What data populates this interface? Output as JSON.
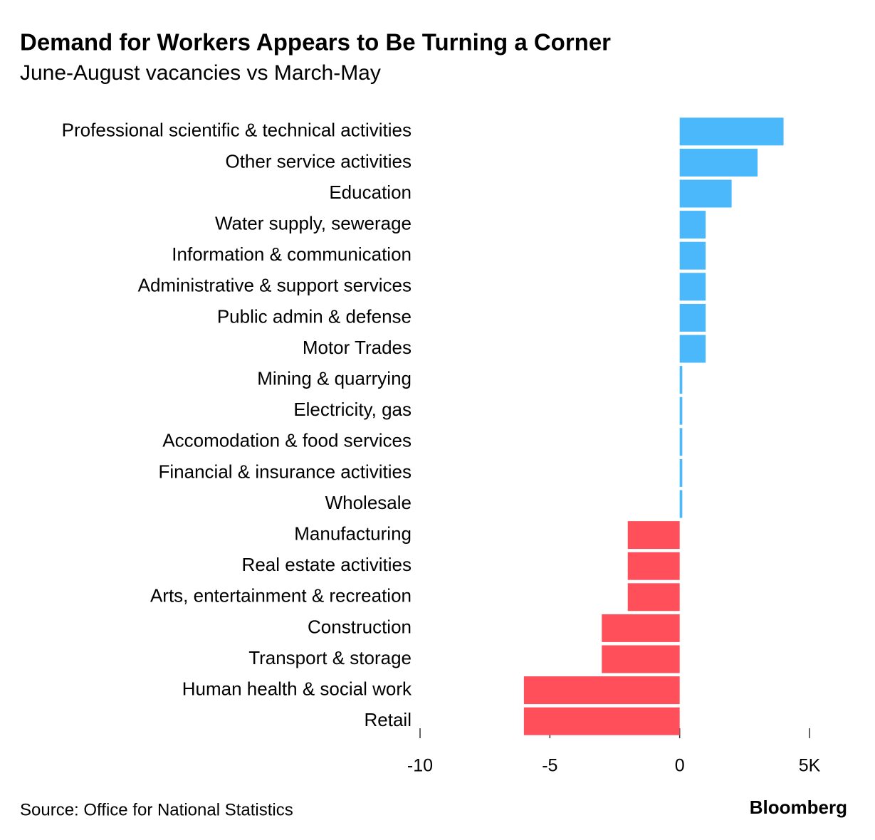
{
  "chart_data": {
    "type": "hbar",
    "title": "Demand for Workers Appears to Be Turning a Corner",
    "subtitle": "June-August vacancies vs March-May",
    "source": "Source: Office for National Statistics",
    "brand": "Bloomberg",
    "categories": [
      "Professional scientific & technical activities",
      "Other service activities",
      "Education",
      "Water supply, sewerage",
      "Information & communication",
      "Administrative & support services",
      "Public admin & defense",
      "Motor Trades",
      "Mining & quarrying",
      "Electricity, gas",
      "Accomodation & food services",
      "Financial & insurance activities",
      "Wholesale",
      "Manufacturing",
      "Real estate activities",
      "Arts, entertainment & recreation",
      "Construction",
      "Transport & storage",
      "Human health & social work",
      "Retail"
    ],
    "values": [
      4,
      3,
      2,
      1,
      1,
      1,
      1,
      1,
      0.1,
      0.1,
      0.1,
      0.1,
      0.1,
      -2,
      -2,
      -2,
      -3,
      -3,
      -6,
      -6
    ],
    "positive_color": "#4ab8fb",
    "negative_color": "#ff4f5a",
    "xlim": [
      -10,
      5
    ],
    "xticks": [
      -10,
      -5,
      0,
      {
        "value": 5,
        "label": "5K"
      }
    ]
  }
}
